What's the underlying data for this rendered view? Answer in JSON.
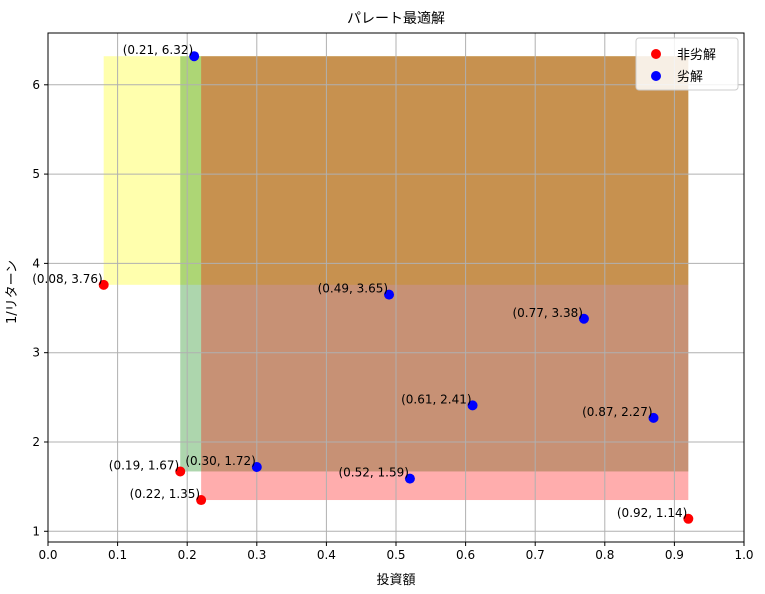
{
  "chart_data": {
    "type": "scatter",
    "title": "パレート最適解",
    "xlabel": "投資額",
    "ylabel": "1/リターン",
    "xlim": [
      0.0,
      1.0
    ],
    "ylim": [
      0.88,
      6.58
    ],
    "xticks": [
      "0.0",
      "0.1",
      "0.2",
      "0.3",
      "0.4",
      "0.5",
      "0.6",
      "0.7",
      "0.8",
      "0.9",
      "1.0"
    ],
    "yticks": [
      "1",
      "2",
      "3",
      "4",
      "5",
      "6"
    ],
    "grid": true,
    "legend_position": "top-right",
    "series": [
      {
        "name": "非劣解",
        "color": "#ff0000",
        "points": [
          {
            "x": 0.08,
            "y": 3.76,
            "label": "(0.08, 3.76)"
          },
          {
            "x": 0.19,
            "y": 1.67,
            "label": "(0.19, 1.67)"
          },
          {
            "x": 0.22,
            "y": 1.35,
            "label": "(0.22, 1.35)"
          },
          {
            "x": 0.92,
            "y": 1.14,
            "label": "(0.92, 1.14)"
          }
        ]
      },
      {
        "name": "劣解",
        "color": "#0000ff",
        "points": [
          {
            "x": 0.21,
            "y": 6.32,
            "label": "(0.21, 6.32)"
          },
          {
            "x": 0.3,
            "y": 1.72,
            "label": "(0.30, 1.72)"
          },
          {
            "x": 0.49,
            "y": 3.65,
            "label": "(0.49, 3.65)"
          },
          {
            "x": 0.52,
            "y": 1.59,
            "label": "(0.52, 1.59)"
          },
          {
            "x": 0.61,
            "y": 2.41,
            "label": "(0.61, 2.41)"
          },
          {
            "x": 0.77,
            "y": 3.38,
            "label": "(0.77, 3.38)"
          },
          {
            "x": 0.87,
            "y": 2.27,
            "label": "(0.87, 2.27)"
          }
        ]
      }
    ],
    "dominated_regions": [
      {
        "x0": 0.08,
        "x1": 0.92,
        "y0": 3.76,
        "y1": 6.32,
        "color": "#ffff00",
        "opacity": 0.32
      },
      {
        "x0": 0.19,
        "x1": 0.92,
        "y0": 1.67,
        "y1": 6.32,
        "color": "#008000",
        "opacity": 0.32
      },
      {
        "x0": 0.22,
        "x1": 0.92,
        "y0": 1.35,
        "y1": 6.32,
        "color": "#ff0000",
        "opacity": 0.32
      }
    ]
  }
}
